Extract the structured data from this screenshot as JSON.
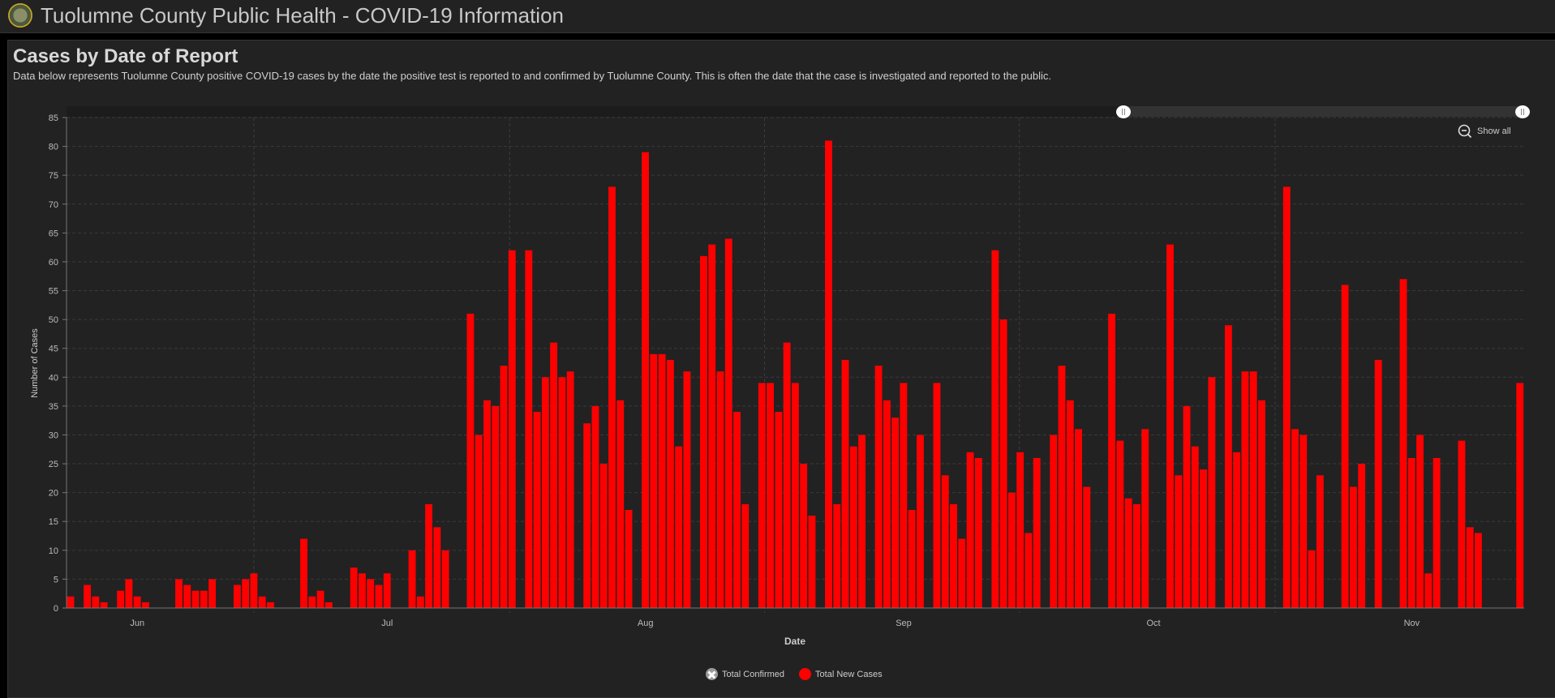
{
  "header": {
    "title": "Tuolumne County Public Health - COVID-19 Information"
  },
  "panel": {
    "title": "Cases by Date of Report",
    "subtitle": "Data below represents Tuolumne County positive COVID-19 cases by the date the positive test is reported to and confirmed by Tuolumne County. This is often the date that the case is investigated and reported to the public."
  },
  "controls": {
    "show_all": "Show all"
  },
  "chart_data": {
    "type": "bar",
    "title": "Cases by Date of Report",
    "xlabel": "Date",
    "ylabel": "Number of Cases",
    "ylim": [
      0,
      85
    ],
    "yticks": [
      "0",
      "5",
      "10",
      "15",
      "20",
      "25",
      "30",
      "35",
      "40",
      "45",
      "50",
      "55",
      "60",
      "65",
      "70",
      "75",
      "80",
      "85"
    ],
    "month_ticks": [
      {
        "label": "Jun",
        "day_index": 8
      },
      {
        "label": "Jul",
        "day_index": 38
      },
      {
        "label": "Aug",
        "day_index": 69
      },
      {
        "label": "Sep",
        "day_index": 100
      },
      {
        "label": "Oct",
        "day_index": 130
      },
      {
        "label": "Nov",
        "day_index": 161
      }
    ],
    "grid": true,
    "legend_position": "bottom-center",
    "legend": [
      {
        "name": "Total Confirmed",
        "visible": false
      },
      {
        "name": "Total New Cases",
        "visible": true
      }
    ],
    "bar_color": "#ff0000",
    "series": [
      {
        "name": "Total New Cases",
        "values": [
          2,
          0,
          4,
          2,
          1,
          0,
          3,
          5,
          2,
          1,
          0,
          0,
          0,
          5,
          4,
          3,
          3,
          5,
          0,
          0,
          4,
          5,
          6,
          2,
          1,
          0,
          0,
          0,
          12,
          2,
          3,
          1,
          0,
          0,
          7,
          6,
          5,
          4,
          6,
          0,
          0,
          10,
          2,
          18,
          14,
          10,
          0,
          0,
          51,
          30,
          36,
          35,
          42,
          62,
          0,
          62,
          34,
          40,
          46,
          40,
          41,
          0,
          32,
          35,
          25,
          73,
          36,
          17,
          0,
          79,
          44,
          44,
          43,
          28,
          41,
          0,
          61,
          63,
          41,
          64,
          34,
          18,
          0,
          39,
          39,
          34,
          46,
          39,
          25,
          16,
          0,
          81,
          18,
          43,
          28,
          30,
          0,
          42,
          36,
          33,
          39,
          17,
          30,
          0,
          39,
          23,
          18,
          12,
          27,
          26,
          0,
          62,
          50,
          20,
          27,
          13,
          26,
          0,
          30,
          42,
          36,
          31,
          21,
          0,
          0,
          51,
          29,
          19,
          18,
          31,
          0,
          0,
          63,
          23,
          35,
          28,
          24,
          40,
          0,
          49,
          27,
          41,
          41,
          36,
          0,
          0,
          73,
          31,
          30,
          10,
          23,
          0,
          0,
          56,
          21,
          25,
          0,
          43,
          0,
          0,
          57,
          26,
          30,
          6,
          26,
          0,
          0,
          29,
          14,
          13,
          0,
          0,
          0,
          0,
          39
        ]
      }
    ]
  }
}
